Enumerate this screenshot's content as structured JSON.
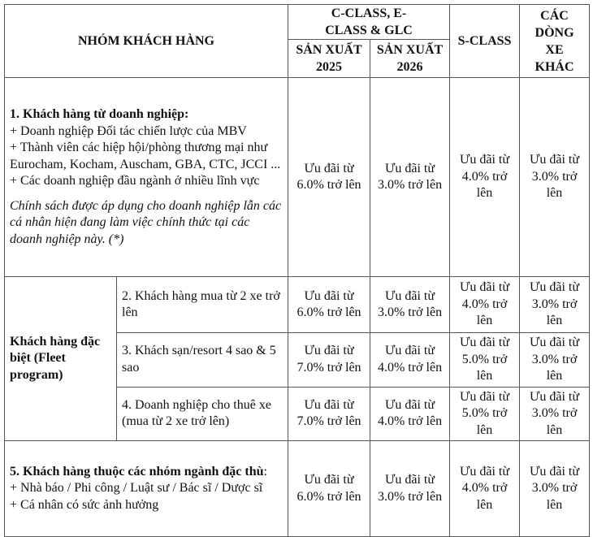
{
  "header": {
    "group": "NHÓM KHÁCH HÀNG",
    "c_class": "C-CLASS, E-CLASS & GLC",
    "year_2025": "SẢN XUẤT 2025",
    "year_2026": "SẢN XUẤT 2026",
    "s_class": "S-CLASS",
    "other": "CÁC DÒNG XE KHÁC"
  },
  "row1": {
    "title": "1. Khách hàng từ doanh nghiệp:",
    "lines": [
      "+ Doanh nghiệp Đối tác chiến lược của MBV",
      "+ Thành viên các hiệp hội/phòng thương mại như Eurocham, Kocham, Auscham, GBA, CTC, JCCI ...",
      "+ Các doanh nghiệp đầu ngành ở nhiều lĩnh vực"
    ],
    "note": "Chính sách được áp dụng cho doanh nghiệp lẫn các cá nhân hiện đang làm việc chính thức tại các doanh nghiệp này. (*)",
    "values": [
      "Ưu đãi từ 6.0% trở lên",
      "Ưu đãi từ 3.0% trở lên",
      "Ưu đãi từ 4.0% trở lên",
      "Ưu đãi từ 3.0% trở lên"
    ]
  },
  "special": {
    "group": "Khách hàng đặc biệt (Fleet program)",
    "rows": [
      {
        "label": "2. Khách hàng mua từ 2 xe trở lên",
        "values": [
          "Ưu đãi từ 6.0% trở lên",
          "Ưu đãi từ 3.0% trở lên",
          "Ưu đãi từ 4.0% trở lên",
          "Ưu đãi từ 3.0% trở lên"
        ]
      },
      {
        "label": "3. Khách sạn/resort 4 sao & 5 sao",
        "values": [
          "Ưu đãi từ 7.0% trở lên",
          "Ưu đãi từ 4.0% trở lên",
          "Ưu đãi từ 5.0% trở lên",
          "Ưu đãi từ 3.0% trở lên"
        ]
      },
      {
        "label": "4. Doanh nghiệp cho thuê xe (mua từ 2 xe trở lên)",
        "values": [
          "Ưu đãi từ 7.0% trở lên",
          "Ưu đãi từ 4.0% trở lên",
          "Ưu đãi từ 5.0% trở lên",
          "Ưu đãi từ 3.0% trở lên"
        ]
      }
    ]
  },
  "row5": {
    "title": "5. Khách hàng thuộc các nhóm ngành đặc thù",
    "title_suffix": ":",
    "lines": [
      "+ Nhà báo / Phi công / Luật sư / Bác sĩ / Dược sĩ",
      "+ Cá nhân có sức ảnh hưởng"
    ],
    "values": [
      "Ưu đãi từ 6.0% trở lên",
      "Ưu đãi từ 3.0% trở lên",
      "Ưu đãi từ 4.0% trở lên",
      "Ưu đãi từ 3.0% trở lên"
    ]
  }
}
